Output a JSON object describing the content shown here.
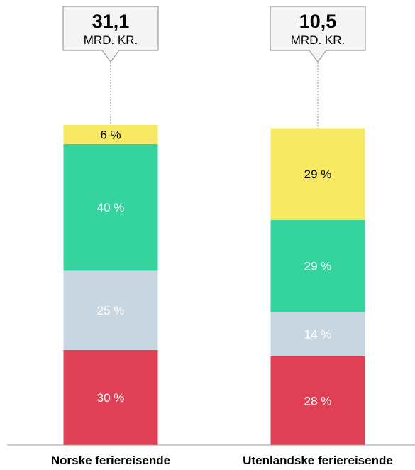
{
  "chart_data": {
    "type": "bar",
    "stacked": true,
    "normalized": true,
    "categories": [
      "Norske feriereisende",
      "Utenlandske feriereisende"
    ],
    "totals": [
      {
        "value": "31,1",
        "unit": "MRD. KR."
      },
      {
        "value": "10,5",
        "unit": "MRD. KR."
      }
    ],
    "series": [
      {
        "color": "#e04055",
        "text_color": "#ffffff",
        "values": [
          30,
          28
        ],
        "labels": [
          "30 %",
          "28 %"
        ]
      },
      {
        "color": "#c8d6e2",
        "text_color": "#ffffff",
        "values": [
          25,
          14
        ],
        "labels": [
          "25 %",
          "14 %"
        ]
      },
      {
        "color": "#35d49e",
        "text_color": "#ffffff",
        "values": [
          40,
          29
        ],
        "labels": [
          "40 %",
          "29 %"
        ]
      },
      {
        "color": "#f7e964",
        "text_color": "#000000",
        "values": [
          6,
          29
        ],
        "labels": [
          "6 %",
          "29 %"
        ]
      }
    ],
    "ylim": [
      0,
      101
    ],
    "grid": false,
    "legend": "none"
  }
}
